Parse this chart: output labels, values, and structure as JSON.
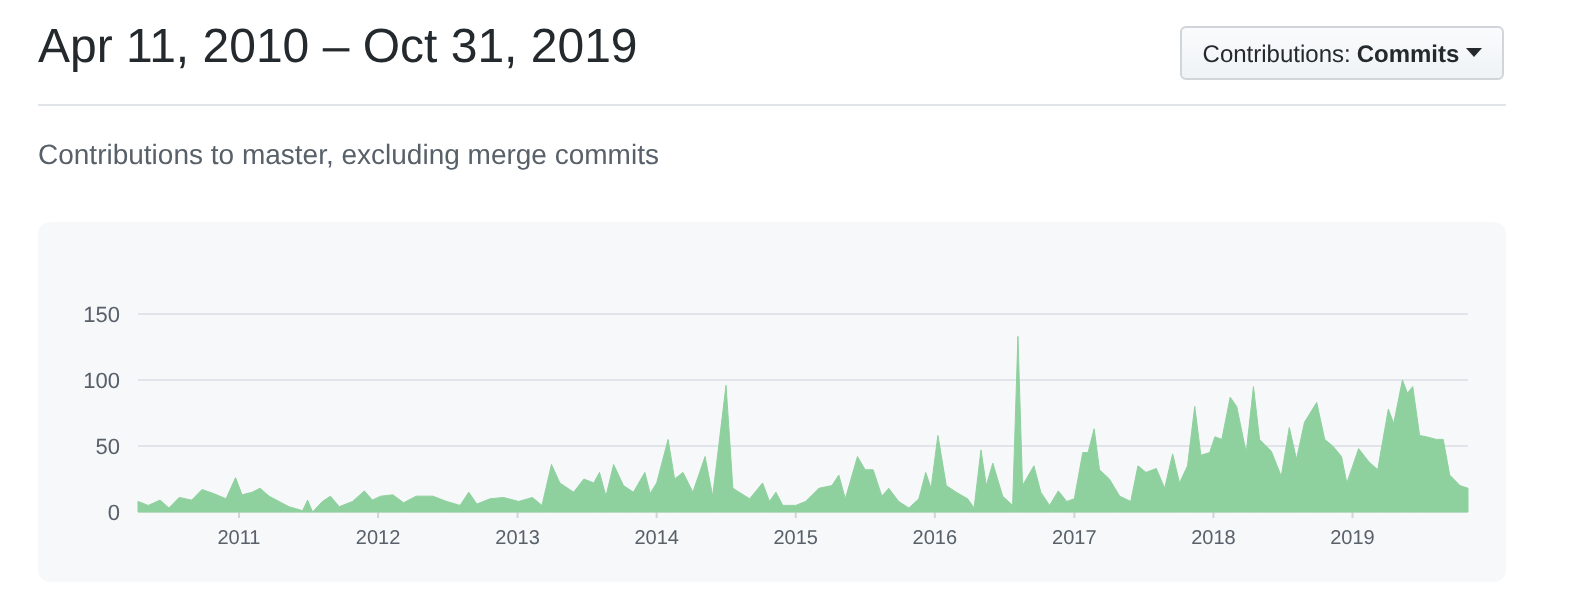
{
  "chart_data": {
    "type": "area",
    "title": "Apr 11, 2010 – Oct 31, 2019",
    "subtitle": "Contributions to master, excluding merge commits",
    "annotations": [
      "Contributions:",
      "Commits"
    ],
    "x": [
      "2010-04-11",
      "2010-05-08",
      "2010-06-08",
      "2010-07-01",
      "2010-07-28",
      "2010-08-30",
      "2010-09-26",
      "2010-10-26",
      "2010-11-28",
      "2010-12-23",
      "2011-01-09",
      "2011-02-05",
      "2011-02-25",
      "2011-03-21",
      "2011-04-16",
      "2011-05-12",
      "2011-06-17",
      "2011-06-30",
      "2011-07-13",
      "2011-08-08",
      "2011-08-29",
      "2011-09-21",
      "2011-10-26",
      "2011-11-26",
      "2011-12-17",
      "2012-01-08",
      "2012-02-09",
      "2012-03-08",
      "2012-04-10",
      "2012-05-24",
      "2012-06-29",
      "2012-08-03",
      "2012-08-26",
      "2012-09-16",
      "2012-10-21",
      "2012-11-25",
      "2013-01-04",
      "2013-02-09",
      "2013-03-06",
      "2013-03-31",
      "2013-04-22",
      "2013-05-28",
      "2013-06-24",
      "2013-07-20",
      "2013-08-04",
      "2013-08-21",
      "2013-09-10",
      "2013-10-06",
      "2013-11-01",
      "2013-12-01",
      "2013-12-15",
      "2014-01-01",
      "2014-01-31",
      "2014-02-17",
      "2014-03-11",
      "2014-04-06",
      "2014-05-08",
      "2014-05-28",
      "2014-07-02",
      "2014-07-20",
      "2014-09-02",
      "2014-10-06",
      "2014-10-24",
      "2014-11-10",
      "2014-11-28",
      "2015-01-01",
      "2015-01-27",
      "2015-03-03",
      "2015-04-06",
      "2015-04-24",
      "2015-05-11",
      "2015-06-12",
      "2015-07-02",
      "2015-07-23",
      "2015-08-15",
      "2015-09-02",
      "2015-09-28",
      "2015-10-25",
      "2015-11-20",
      "2015-12-08",
      "2015-12-22",
      "2016-01-09",
      "2016-01-31",
      "2016-02-26",
      "2016-03-27",
      "2016-04-13",
      "2016-05-01",
      "2016-05-15",
      "2016-06-01",
      "2016-06-27",
      "2016-07-23",
      "2016-08-06",
      "2016-08-18",
      "2016-09-17",
      "2016-10-05",
      "2016-10-28",
      "2016-11-20",
      "2016-12-12",
      "2017-01-01",
      "2017-01-23",
      "2017-02-06",
      "2017-02-22",
      "2017-03-08",
      "2017-04-03",
      "2017-04-30",
      "2017-05-29",
      "2017-06-17",
      "2017-07-08",
      "2017-08-04",
      "2017-08-26",
      "2017-09-16",
      "2017-10-04",
      "2017-10-25",
      "2017-11-13",
      "2017-11-29",
      "2017-12-22",
      "2018-01-05",
      "2018-01-23",
      "2018-02-14",
      "2018-03-03",
      "2018-03-28",
      "2018-04-16",
      "2018-05-02",
      "2018-06-02",
      "2018-06-28",
      "2018-07-19",
      "2018-08-07",
      "2018-08-28",
      "2018-09-29",
      "2018-10-20",
      "2018-11-10",
      "2018-12-03",
      "2018-12-17",
      "2019-01-17",
      "2019-02-13",
      "2019-03-08",
      "2019-04-05",
      "2019-04-19",
      "2019-05-12",
      "2019-05-25",
      "2019-06-08",
      "2019-06-26",
      "2019-07-13",
      "2019-08-09",
      "2019-08-27",
      "2019-09-13",
      "2019-10-10",
      "2019-10-31"
    ],
    "series": [
      {
        "color": "#8fd19e",
        "values": [
          8,
          5,
          9,
          3,
          11,
          9,
          17,
          14,
          10,
          26,
          13,
          15,
          18,
          12,
          8,
          4,
          1,
          9,
          0,
          8,
          12,
          4,
          8,
          16,
          9,
          12,
          13,
          7,
          12,
          12,
          8,
          5,
          15,
          6,
          10,
          11,
          8,
          11,
          5,
          36,
          22,
          15,
          25,
          22,
          30,
          12,
          36,
          20,
          15,
          30,
          14,
          22,
          55,
          25,
          30,
          15,
          42,
          12,
          96,
          18,
          10,
          22,
          8,
          15,
          5,
          5,
          8,
          18,
          20,
          28,
          10,
          42,
          32,
          32,
          12,
          18,
          8,
          3,
          10,
          30,
          18,
          58,
          20,
          15,
          10,
          3,
          47,
          20,
          37,
          12,
          5,
          133,
          20,
          35,
          15,
          5,
          16,
          8,
          10,
          45,
          45,
          63,
          32,
          25,
          12,
          8,
          35,
          30,
          33,
          18,
          44,
          22,
          35,
          80,
          43,
          45,
          57,
          55,
          87,
          80,
          45,
          95,
          55,
          46,
          27,
          64,
          40,
          68,
          83,
          55,
          50,
          42,
          22,
          48,
          38,
          32,
          78,
          67,
          100,
          90,
          95,
          58,
          57,
          55,
          55,
          28,
          20,
          18
        ]
      }
    ],
    "xlim": [
      "2010-04-11",
      "2019-10-31"
    ],
    "xticks": [
      {
        "value": "2011-01-01",
        "label": "2011"
      },
      {
        "value": "2012-01-01",
        "label": "2012"
      },
      {
        "value": "2013-01-01",
        "label": "2013"
      },
      {
        "value": "2014-01-01",
        "label": "2014"
      },
      {
        "value": "2015-01-01",
        "label": "2015"
      },
      {
        "value": "2016-01-01",
        "label": "2016"
      },
      {
        "value": "2017-01-01",
        "label": "2017"
      },
      {
        "value": "2018-01-01",
        "label": "2018"
      },
      {
        "value": "2019-01-01",
        "label": "2019"
      }
    ],
    "ylim": [
      0,
      150
    ],
    "yticks": [
      0,
      50,
      100,
      150
    ],
    "grid": "y"
  }
}
